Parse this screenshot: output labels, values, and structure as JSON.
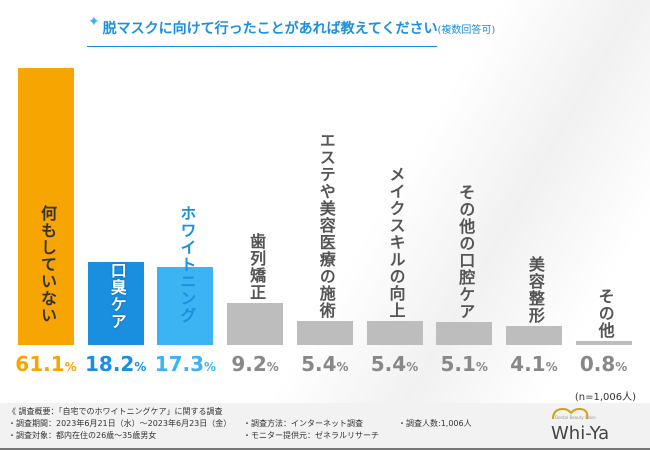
{
  "chart_data": {
    "type": "bar",
    "title": "脱マスクに向けて行ったことがあれば教えてください",
    "subtitle": "(複数回答可)",
    "categories": [
      "何もしていない",
      "口臭ケア",
      "ホワイトニング",
      "歯列矯正",
      "エステや美容医療の施術",
      "メイクスキルの向上",
      "その他の口腔ケア",
      "美容整形",
      "その他"
    ],
    "values": [
      61.1,
      18.2,
      17.3,
      9.2,
      5.4,
      5.4,
      5.1,
      4.1,
      0.8
    ],
    "value_labels": [
      "61.1%",
      "18.2%",
      "17.3%",
      "9.2%",
      "5.4%",
      "5.4%",
      "5.1%",
      "4.1%",
      "0.8%"
    ],
    "colors": [
      "#f7a500",
      "#1a8fe0",
      "#3cb4f4",
      "#bdbdbd",
      "#bdbdbd",
      "#bdbdbd",
      "#bdbdbd",
      "#bdbdbd",
      "#bdbdbd"
    ],
    "label_colors": [
      "#f7a500",
      "#1a8fe0",
      "#3cb4f4",
      "#888888",
      "#888888",
      "#888888",
      "#888888",
      "#888888",
      "#888888"
    ],
    "note": "(n=1,006人)",
    "ylim": [
      0,
      61.1
    ]
  },
  "footer": {
    "line1": "《 調査概要：「自宅でのホワイトニングケア」に関する調査",
    "line2": "・調査期間：2023年6月21日（水）～2023年6月23日（金）",
    "line3": "・調査対象：都内在住の26歳～35歳男女",
    "method": "・調査方法：インターネット調査",
    "provider": "・モニター提供元：ゼネラルリサーチ",
    "count": "・調査人数:1,006人"
  },
  "logo": {
    "text": "Whi-Ya",
    "sub": "Dental Beauty Salon"
  }
}
